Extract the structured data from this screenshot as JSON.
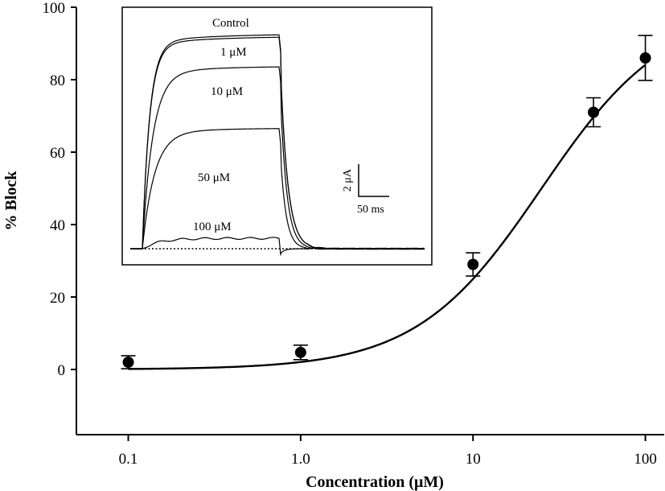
{
  "chart_data": {
    "type": "scatter",
    "xlabel": "Concentration (μM)",
    "ylabel": "% Block",
    "x_scale": "log",
    "xlim": [
      0.05,
      130
    ],
    "ylim": [
      -18,
      100
    ],
    "x_ticks": [
      {
        "value": 0.1,
        "label": "0.1"
      },
      {
        "value": 1,
        "label": "1.0"
      },
      {
        "value": 10,
        "label": "10"
      },
      {
        "value": 100,
        "label": "100"
      }
    ],
    "y_ticks": [
      0,
      20,
      40,
      60,
      80,
      100
    ],
    "grid": false,
    "series": [
      {
        "marker": "filled-circle",
        "color": "#000000",
        "points": [
          {
            "x": 0.1,
            "y": 2.0,
            "err": 1.8
          },
          {
            "x": 1,
            "y": 4.7,
            "err": 2.0
          },
          {
            "x": 10,
            "y": 29.0,
            "err": 3.2
          },
          {
            "x": 50,
            "y": 71.0,
            "err": 4.0
          },
          {
            "x": 100,
            "y": 86.0,
            "err": 6.2
          }
        ]
      }
    ],
    "fit_curve": {
      "type": "hill",
      "ic50": 25,
      "hill_coefficient": 1.2,
      "x_range": [
        0.1,
        100
      ],
      "color": "#000000"
    },
    "inset": {
      "type": "line",
      "position": "top-left",
      "trace_labels": [
        "Control",
        "1 μM",
        "10 μM",
        "50 μM",
        "100 μM"
      ],
      "scale_bar": {
        "y_label": "2 μA",
        "x_label": "50 ms"
      },
      "baseline": "dotted"
    }
  }
}
